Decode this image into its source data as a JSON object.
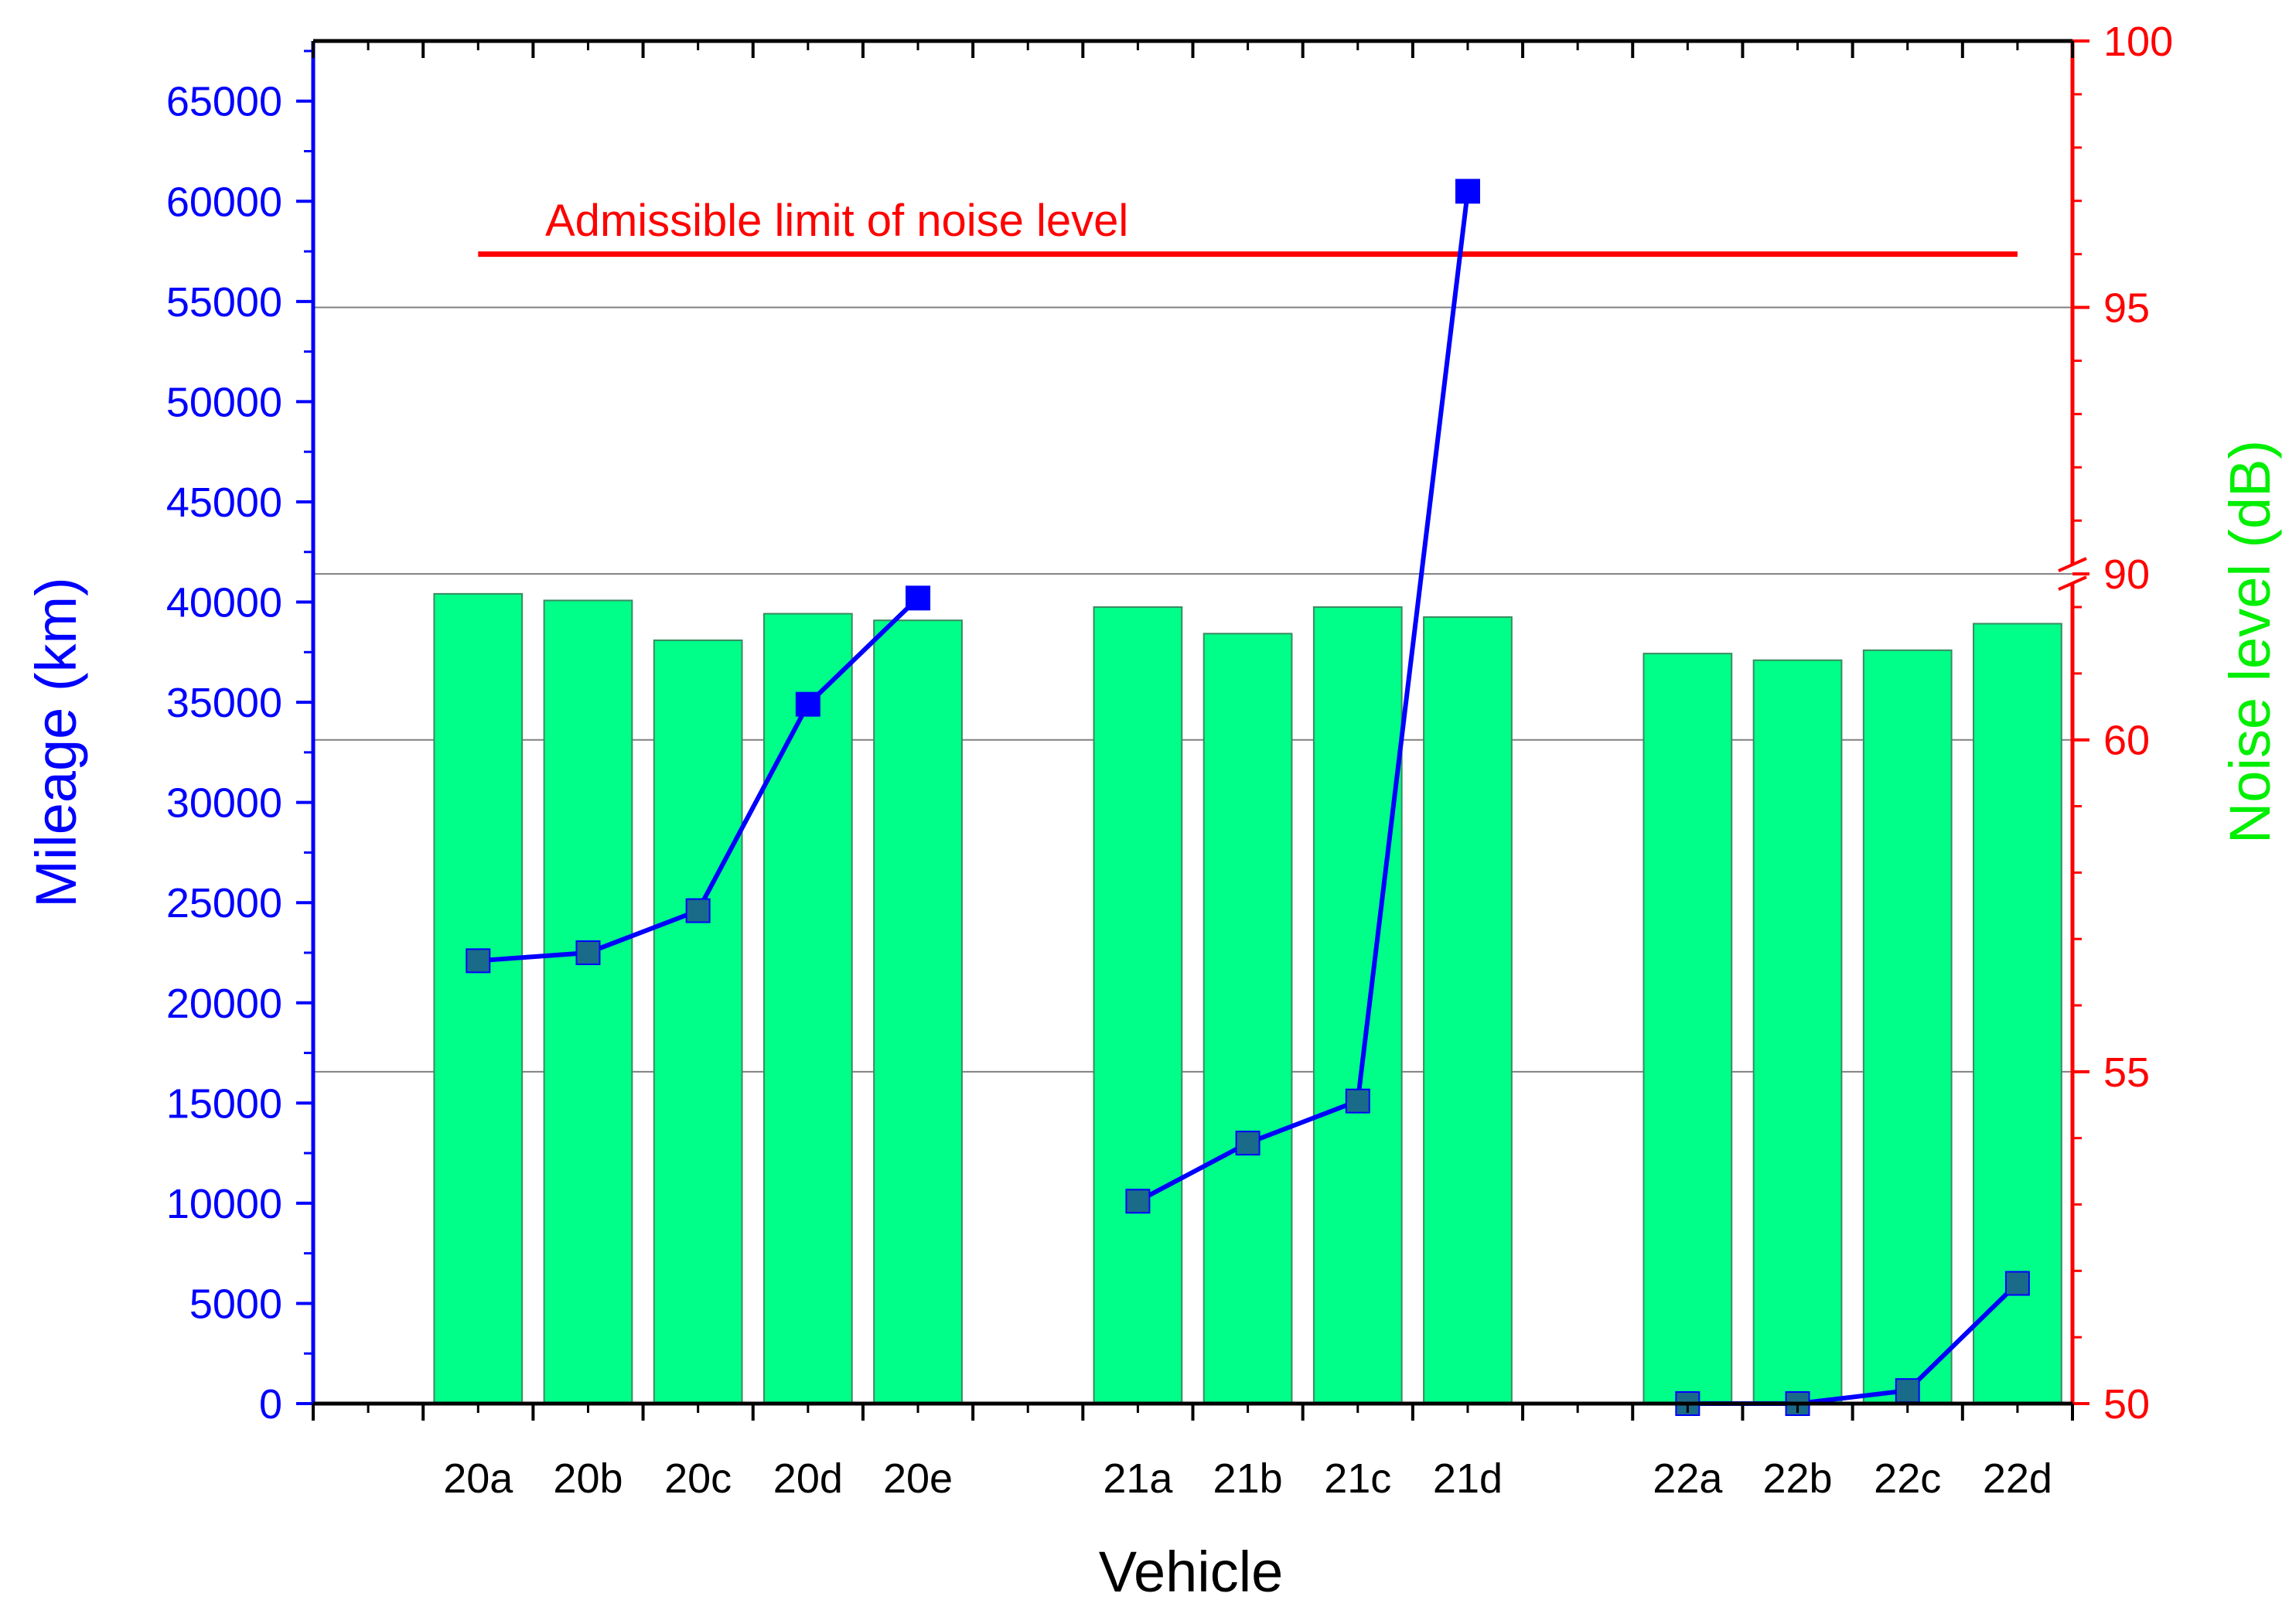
{
  "chart_data": {
    "type": "bar",
    "xlabel": "Vehicle",
    "categories": [
      "20a",
      "20b",
      "20c",
      "20d",
      "20e",
      "21a",
      "21b",
      "21c",
      "21d",
      "22a",
      "22b",
      "22c",
      "22d"
    ],
    "groups": [
      [
        "20a",
        "20b",
        "20c",
        "20d",
        "20e"
      ],
      [
        "21a",
        "21b",
        "21c",
        "21d"
      ],
      [
        "22a",
        "22b",
        "22c",
        "22d"
      ]
    ],
    "left_axis": {
      "label": "Mileage (km)",
      "ylim": [
        0,
        68000
      ],
      "ticks": [
        "0",
        "5000",
        "10000",
        "15000",
        "20000",
        "25000",
        "30000",
        "35000",
        "40000",
        "45000",
        "50000",
        "55000",
        "60000",
        "65000"
      ],
      "color": "#0000ff"
    },
    "right_axis": {
      "label": "Noise level (dB)",
      "broken": true,
      "break_between": [
        62.5,
        90
      ],
      "ticks": [
        "50",
        "55",
        "60",
        "90",
        "95",
        "100"
      ],
      "color": "#ff0000",
      "label_color": "#00ee00"
    },
    "series": [
      {
        "kind": "bar",
        "axis": "right",
        "color": "#00ff88",
        "values": [
          62.2,
          62.1,
          61.5,
          61.9,
          61.8,
          62.0,
          61.6,
          62.0,
          61.85,
          61.3,
          61.2,
          61.35,
          61.75
        ]
      },
      {
        "kind": "line",
        "axis": "left",
        "color": "#0000ff",
        "marker": "square",
        "segments": [
          [
            [
              "20a",
              22100
            ],
            [
              "20b",
              22500
            ],
            [
              "20c",
              24600
            ],
            [
              "20d",
              34900
            ],
            [
              "20e",
              40200
            ]
          ],
          [
            [
              "21a",
              10100
            ],
            [
              "21b",
              13000
            ],
            [
              "21c",
              15100
            ],
            [
              "21d",
              60500
            ]
          ],
          [
            [
              "22a",
              0
            ],
            [
              "22b",
              0
            ],
            [
              "22c",
              650
            ],
            [
              "22d",
              6000
            ]
          ]
        ]
      }
    ],
    "reference_line": {
      "label": "Admissible limit of noise level",
      "axis": "right",
      "value": 96,
      "from": "20a",
      "to": "22d",
      "color": "#ff0000"
    },
    "grid": "horizontal at right-axis ticks"
  }
}
